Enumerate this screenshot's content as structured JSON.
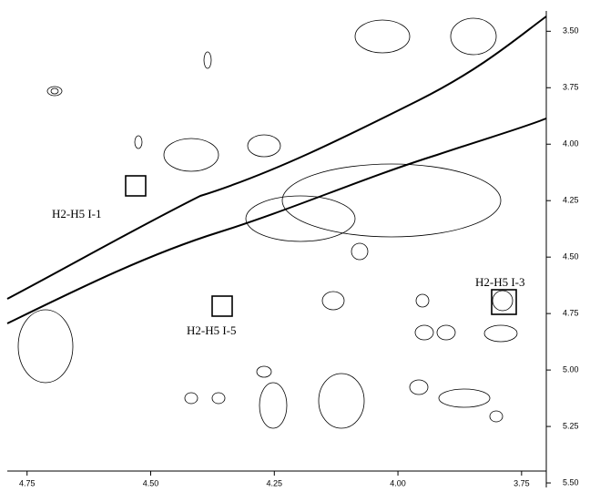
{
  "chart_data": {
    "type": "contour",
    "xlim": [
      4.79,
      3.7
    ],
    "xticks": [
      4.75,
      {
        "value": 4.5,
        "label": "4.50"
      },
      4.25,
      {
        "value": 4,
        "label": "4.00"
      },
      3.75
    ],
    "ylim": [
      3.41,
      5.52
    ],
    "yticks": [
      {
        "value": 3.5,
        "label": "3.50"
      },
      3.75,
      {
        "value": 4,
        "label": "4.00"
      },
      4.25,
      {
        "value": 4.5,
        "label": "4.50"
      },
      4.75,
      {
        "value": 5,
        "label": "5.00"
      },
      5.25,
      {
        "value": 5.5,
        "label": "5.50"
      }
    ],
    "annotations": [
      "H2-H5 I-1",
      "H2-H5 I-5",
      "H2-H5 I-3"
    ]
  }
}
